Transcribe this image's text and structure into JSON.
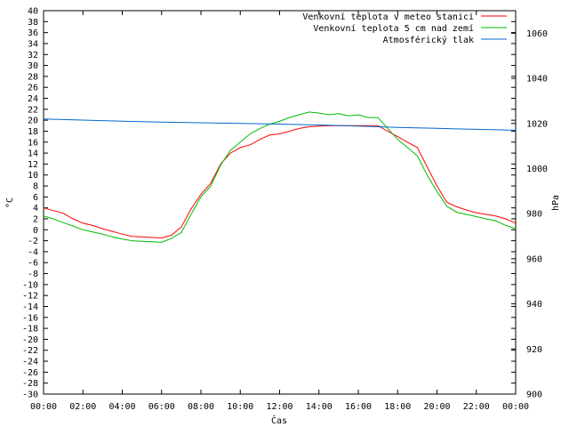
{
  "chart_data": {
    "type": "line",
    "title": "",
    "xlabel": "Čas",
    "ylabel_left": "°C",
    "ylabel_right": "hPa",
    "x_ticks": [
      "00:00",
      "02:00",
      "04:00",
      "06:00",
      "08:00",
      "10:00",
      "12:00",
      "14:00",
      "16:00",
      "18:00",
      "20:00",
      "22:00",
      "00:00"
    ],
    "x_range_hours": [
      0,
      24
    ],
    "y_left_range": [
      -30,
      40
    ],
    "y_left_step": 2,
    "y_right_range": [
      900,
      1070
    ],
    "y_right_ticks": [
      900,
      920,
      940,
      960,
      980,
      1000,
      1020,
      1040,
      1060
    ],
    "legend_position": "top-right",
    "grid": false,
    "series": [
      {
        "name": "Venkovní teplota v meteo stanici",
        "color": "#ff0000",
        "axis": "left",
        "x_hours": [
          0,
          0.5,
          1,
          1.5,
          2,
          2.5,
          3,
          3.5,
          4,
          4.5,
          5,
          5.5,
          6,
          6.5,
          7,
          7.5,
          8,
          8.5,
          9,
          9.5,
          10,
          10.5,
          11,
          11.5,
          12,
          12.5,
          13,
          13.5,
          14,
          14.5,
          15,
          15.5,
          16,
          16.5,
          17,
          17.5,
          18,
          18.5,
          19,
          19.5,
          20,
          20.5,
          21,
          21.5,
          22,
          22.5,
          23,
          23.5,
          24
        ],
        "values": [
          4,
          3.5,
          3,
          2,
          1.2,
          0.8,
          0.2,
          -0.3,
          -0.8,
          -1.2,
          -1.3,
          -1.4,
          -1.5,
          -1,
          0.5,
          3.8,
          6.5,
          8.5,
          12,
          14,
          15,
          15.5,
          16.5,
          17.3,
          17.5,
          18,
          18.5,
          18.8,
          18.9,
          19,
          19,
          19,
          19,
          19,
          19,
          18,
          17,
          16,
          15,
          11.5,
          8,
          5,
          4.2,
          3.6,
          3.1,
          2.8,
          2.5,
          2,
          1.2
        ]
      },
      {
        "name": "Venkovní teplota 5 cm nad zemí",
        "color": "#00bb00",
        "axis": "left",
        "x_hours": [
          0,
          0.5,
          1,
          1.5,
          2,
          2.5,
          3,
          3.5,
          4,
          4.5,
          5,
          5.5,
          6,
          6.5,
          7,
          7.5,
          8,
          8.5,
          9,
          9.5,
          10,
          10.5,
          11,
          11.5,
          12,
          12.5,
          13,
          13.5,
          14,
          14.5,
          15,
          15.5,
          16,
          16.5,
          17,
          17.5,
          18,
          18.5,
          19,
          19.5,
          20,
          20.5,
          21,
          21.5,
          22,
          22.5,
          23,
          23.5,
          24
        ],
        "values": [
          2.5,
          2,
          1.3,
          0.7,
          0,
          -0.4,
          -0.8,
          -1.3,
          -1.7,
          -2,
          -2.1,
          -2.2,
          -2.3,
          -1.6,
          -0.5,
          2.8,
          6,
          8,
          11.8,
          14.5,
          16,
          17.5,
          18.5,
          19.3,
          19.8,
          20.5,
          21,
          21.5,
          21.3,
          21,
          21.2,
          20.8,
          21,
          20.5,
          20.5,
          18.5,
          16.5,
          15,
          13.5,
          10,
          7,
          4.3,
          3.2,
          2.8,
          2.4,
          2,
          1.6,
          0.8,
          0.2
        ]
      },
      {
        "name": "Atmosférický tlak",
        "color": "#0066cc",
        "axis": "right",
        "x_hours": [
          0,
          2,
          4,
          6,
          8,
          10,
          12,
          14,
          16,
          18,
          20,
          22,
          24
        ],
        "values": [
          1022,
          1021.5,
          1021,
          1020.6,
          1020.3,
          1020,
          1019.7,
          1019.3,
          1018.8,
          1018.2,
          1017.8,
          1017.4,
          1017
        ]
      }
    ]
  }
}
